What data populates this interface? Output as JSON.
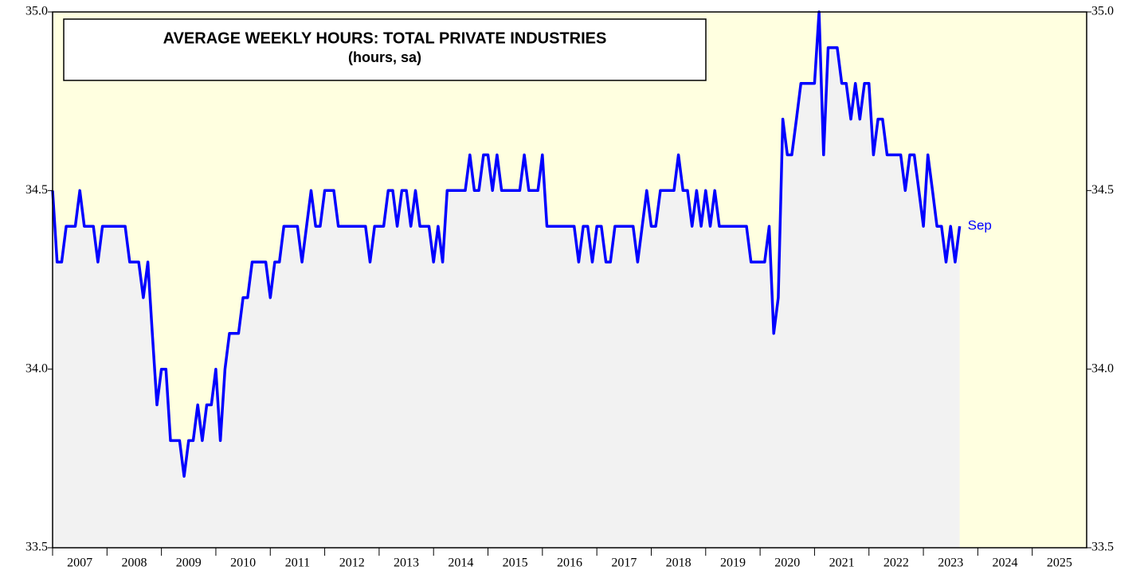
{
  "chart_data": {
    "type": "line",
    "title": "AVERAGE WEEKLY HOURS: TOTAL PRIVATE INDUSTRIES",
    "subtitle": "(hours, sa)",
    "annotation": "Sep",
    "x": [
      2007,
      2007.083,
      2007.167,
      2007.25,
      2007.333,
      2007.417,
      2007.5,
      2007.583,
      2007.667,
      2007.75,
      2007.833,
      2007.917,
      2008,
      2008.083,
      2008.167,
      2008.25,
      2008.333,
      2008.417,
      2008.5,
      2008.583,
      2008.667,
      2008.75,
      2008.833,
      2008.917,
      2009,
      2009.083,
      2009.167,
      2009.25,
      2009.333,
      2009.417,
      2009.5,
      2009.583,
      2009.667,
      2009.75,
      2009.833,
      2009.917,
      2010,
      2010.083,
      2010.167,
      2010.25,
      2010.333,
      2010.417,
      2010.5,
      2010.583,
      2010.667,
      2010.75,
      2010.833,
      2010.917,
      2011,
      2011.083,
      2011.167,
      2011.25,
      2011.333,
      2011.417,
      2011.5,
      2011.583,
      2011.667,
      2011.75,
      2011.833,
      2011.917,
      2012,
      2012.083,
      2012.167,
      2012.25,
      2012.333,
      2012.417,
      2012.5,
      2012.583,
      2012.667,
      2012.75,
      2012.833,
      2012.917,
      2013,
      2013.083,
      2013.167,
      2013.25,
      2013.333,
      2013.417,
      2013.5,
      2013.583,
      2013.667,
      2013.75,
      2013.833,
      2013.917,
      2014,
      2014.083,
      2014.167,
      2014.25,
      2014.333,
      2014.417,
      2014.5,
      2014.583,
      2014.667,
      2014.75,
      2014.833,
      2014.917,
      2015,
      2015.083,
      2015.167,
      2015.25,
      2015.333,
      2015.417,
      2015.5,
      2015.583,
      2015.667,
      2015.75,
      2015.833,
      2015.917,
      2016,
      2016.083,
      2016.167,
      2016.25,
      2016.333,
      2016.417,
      2016.5,
      2016.583,
      2016.667,
      2016.75,
      2016.833,
      2016.917,
      2017,
      2017.083,
      2017.167,
      2017.25,
      2017.333,
      2017.417,
      2017.5,
      2017.583,
      2017.667,
      2017.75,
      2017.833,
      2017.917,
      2018,
      2018.083,
      2018.167,
      2018.25,
      2018.333,
      2018.417,
      2018.5,
      2018.583,
      2018.667,
      2018.75,
      2018.833,
      2018.917,
      2019,
      2019.083,
      2019.167,
      2019.25,
      2019.333,
      2019.417,
      2019.5,
      2019.583,
      2019.667,
      2019.75,
      2019.833,
      2019.917,
      2020,
      2020.083,
      2020.167,
      2020.25,
      2020.333,
      2020.417,
      2020.5,
      2020.583,
      2020.667,
      2020.75,
      2020.833,
      2020.917,
      2021,
      2021.083,
      2021.167,
      2021.25,
      2021.333,
      2021.417,
      2021.5,
      2021.583,
      2021.667,
      2021.75,
      2021.833,
      2021.917,
      2022,
      2022.083,
      2022.167,
      2022.25,
      2022.333,
      2022.417,
      2022.5,
      2022.583,
      2022.667,
      2022.75,
      2022.833,
      2022.917,
      2023,
      2023.083,
      2023.167,
      2023.25,
      2023.333,
      2023.417,
      2023.5,
      2023.583,
      2023.667
    ],
    "series": [
      {
        "color": "#0000ff",
        "values": [
          34.5,
          34.3,
          34.3,
          34.4,
          34.4,
          34.4,
          34.5,
          34.4,
          34.4,
          34.4,
          34.3,
          34.4,
          34.4,
          34.4,
          34.4,
          34.4,
          34.4,
          34.3,
          34.3,
          34.3,
          34.2,
          34.3,
          34.1,
          33.9,
          34.0,
          34.0,
          33.8,
          33.8,
          33.8,
          33.7,
          33.8,
          33.8,
          33.9,
          33.8,
          33.9,
          33.9,
          34.0,
          33.8,
          34.0,
          34.1,
          34.1,
          34.1,
          34.2,
          34.2,
          34.3,
          34.3,
          34.3,
          34.3,
          34.2,
          34.3,
          34.3,
          34.4,
          34.4,
          34.4,
          34.4,
          34.3,
          34.4,
          34.5,
          34.4,
          34.4,
          34.5,
          34.5,
          34.5,
          34.4,
          34.4,
          34.4,
          34.4,
          34.4,
          34.4,
          34.4,
          34.3,
          34.4,
          34.4,
          34.4,
          34.5,
          34.5,
          34.4,
          34.5,
          34.5,
          34.4,
          34.5,
          34.4,
          34.4,
          34.4,
          34.3,
          34.4,
          34.3,
          34.5,
          34.5,
          34.5,
          34.5,
          34.5,
          34.6,
          34.5,
          34.5,
          34.6,
          34.6,
          34.5,
          34.6,
          34.5,
          34.5,
          34.5,
          34.5,
          34.5,
          34.6,
          34.5,
          34.5,
          34.5,
          34.6,
          34.4,
          34.4,
          34.4,
          34.4,
          34.4,
          34.4,
          34.4,
          34.3,
          34.4,
          34.4,
          34.3,
          34.4,
          34.4,
          34.3,
          34.3,
          34.4,
          34.4,
          34.4,
          34.4,
          34.4,
          34.3,
          34.4,
          34.5,
          34.4,
          34.4,
          34.5,
          34.5,
          34.5,
          34.5,
          34.6,
          34.5,
          34.5,
          34.4,
          34.5,
          34.4,
          34.5,
          34.4,
          34.5,
          34.4,
          34.4,
          34.4,
          34.4,
          34.4,
          34.4,
          34.4,
          34.3,
          34.3,
          34.3,
          34.3,
          34.4,
          34.1,
          34.2,
          34.7,
          34.6,
          34.6,
          34.7,
          34.8,
          34.8,
          34.8,
          34.8,
          35.0,
          34.6,
          34.9,
          34.9,
          34.9,
          34.8,
          34.8,
          34.7,
          34.8,
          34.7,
          34.8,
          34.8,
          34.6,
          34.7,
          34.7,
          34.6,
          34.6,
          34.6,
          34.6,
          34.5,
          34.6,
          34.6,
          34.5,
          34.4,
          34.6,
          34.5,
          34.4,
          34.4,
          34.3,
          34.4,
          34.3,
          34.4
        ]
      }
    ],
    "xlim": [
      2007,
      2026
    ],
    "xticks": [
      2007,
      2008,
      2009,
      2010,
      2011,
      2012,
      2013,
      2014,
      2015,
      2016,
      2017,
      2018,
      2019,
      2020,
      2021,
      2022,
      2023,
      2024,
      2025
    ],
    "ylim": [
      33.5,
      35.0
    ],
    "yticks": [
      {
        "value": 33.5,
        "label": "33.5"
      },
      {
        "value": 34.0,
        "label": "34.0"
      },
      {
        "value": 34.5,
        "label": "34.5"
      },
      {
        "value": 35.0,
        "label": "35.0"
      }
    ]
  }
}
